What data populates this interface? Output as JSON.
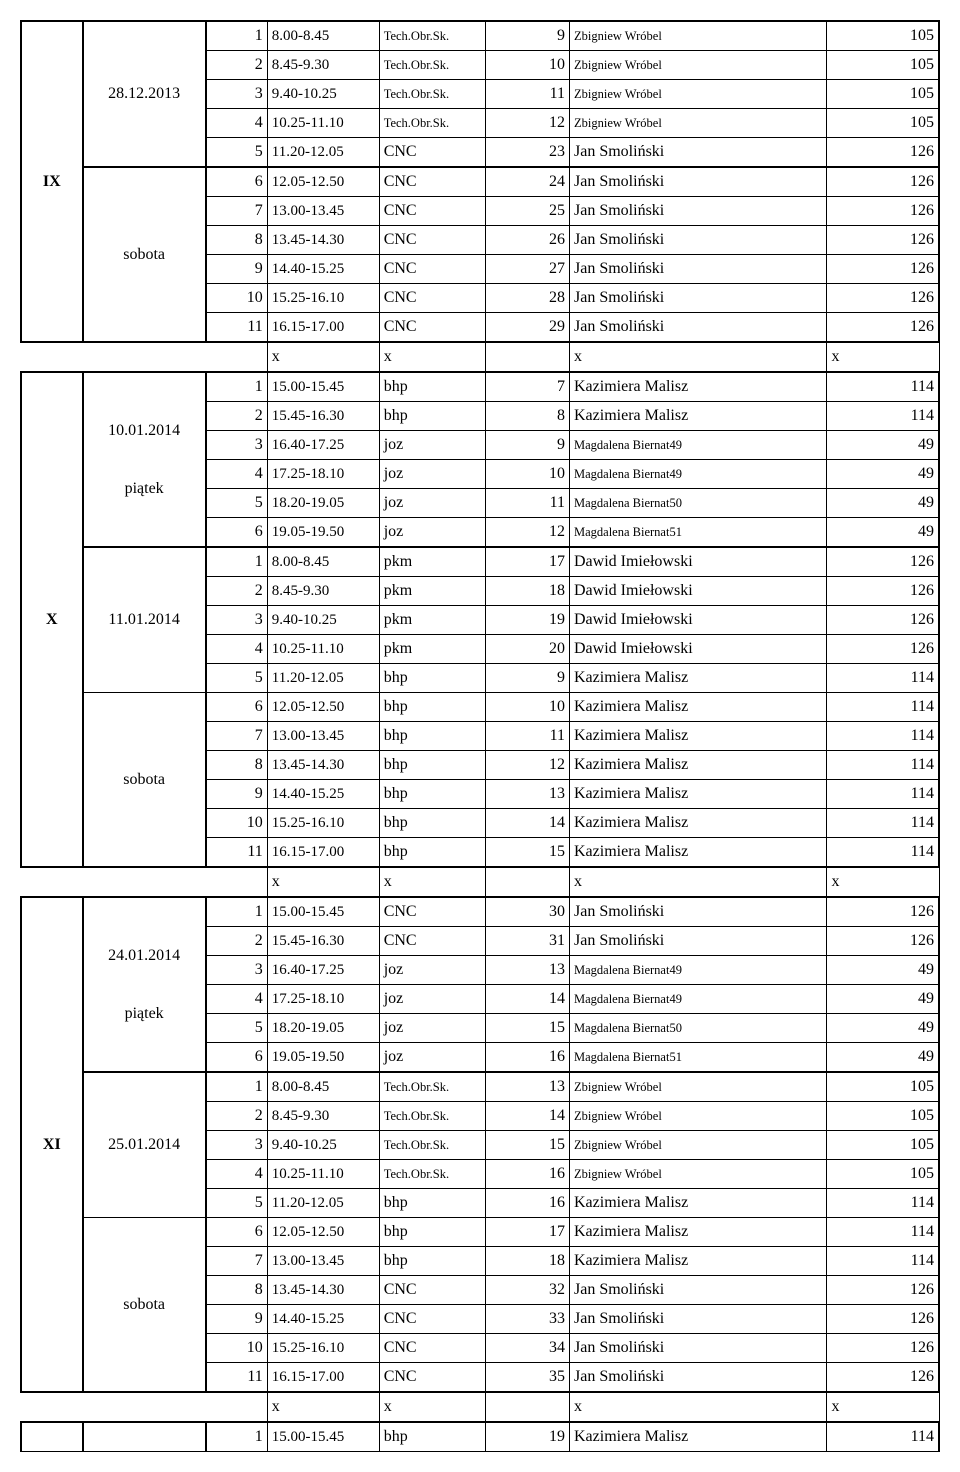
{
  "blocks": [
    {
      "roman": "IX",
      "groups": [
        {
          "date": "28.12.2013",
          "day": null,
          "thickTopStart": true,
          "rows": [
            {
              "n": "1",
              "time": "8.00-8.45",
              "subj": "Tech.Obr.Sk.",
              "subjSmall": true,
              "c6": "9",
              "teacher": "Zbigniew Wróbel",
              "teacherSmall": true,
              "room": "105"
            },
            {
              "n": "2",
              "time": "8.45-9.30",
              "subj": "Tech.Obr.Sk.",
              "subjSmall": true,
              "c6": "10",
              "teacher": "Zbigniew Wróbel",
              "teacherSmall": true,
              "room": "105"
            },
            {
              "n": "3",
              "time": "9.40-10.25",
              "subj": "Tech.Obr.Sk.",
              "subjSmall": true,
              "c6": "11",
              "teacher": "Zbigniew Wróbel",
              "teacherSmall": true,
              "room": "105"
            },
            {
              "n": "4",
              "time": "10.25-11.10",
              "subj": "Tech.Obr.Sk.",
              "subjSmall": true,
              "c6": "12",
              "teacher": "Zbigniew Wróbel",
              "teacherSmall": true,
              "room": "105"
            },
            {
              "n": "5",
              "time": "11.20-12.05",
              "subj": "CNC",
              "subjSmall": false,
              "c6": "23",
              "teacher": "Jan Smoliński",
              "teacherSmall": false,
              "room": "126"
            }
          ]
        },
        {
          "date": null,
          "day": "sobota",
          "thickTopStart": true,
          "rows": [
            {
              "n": "6",
              "time": "12.05-12.50",
              "subj": "CNC",
              "subjSmall": false,
              "c6": "24",
              "teacher": "Jan Smoliński",
              "teacherSmall": false,
              "room": "126"
            },
            {
              "n": "7",
              "time": "13.00-13.45",
              "subj": "CNC",
              "subjSmall": false,
              "c6": "25",
              "teacher": "Jan Smoliński",
              "teacherSmall": false,
              "room": "126"
            },
            {
              "n": "8",
              "time": "13.45-14.30",
              "subj": "CNC",
              "subjSmall": false,
              "c6": "26",
              "teacher": "Jan Smoliński",
              "teacherSmall": false,
              "room": "126"
            },
            {
              "n": "9",
              "time": "14.40-15.25",
              "subj": "CNC",
              "subjSmall": false,
              "c6": "27",
              "teacher": "Jan Smoliński",
              "teacherSmall": false,
              "room": "126"
            },
            {
              "n": "10",
              "time": "15.25-16.10",
              "subj": "CNC",
              "subjSmall": false,
              "c6": "28",
              "teacher": "Jan Smoliński",
              "teacherSmall": false,
              "room": "126"
            },
            {
              "n": "11",
              "time": "16.15-17.00",
              "subj": "CNC",
              "subjSmall": false,
              "c6": "29",
              "teacher": "Jan Smoliński",
              "teacherSmall": false,
              "room": "126"
            }
          ]
        }
      ],
      "separator": {
        "c4": "x",
        "c5": "x",
        "c6": "",
        "c7": "x",
        "c8": "x"
      }
    },
    {
      "roman": "X",
      "groups": [
        {
          "date": "10.01.2014",
          "day": "piątek",
          "thickTopStart": true,
          "rows": [
            {
              "n": "1",
              "time": "15.00-15.45",
              "subj": "bhp",
              "subjSmall": false,
              "c6": "7",
              "teacher": "Kazimiera Malisz",
              "teacherSmall": false,
              "room": "114"
            },
            {
              "n": "2",
              "time": "15.45-16.30",
              "subj": "bhp",
              "subjSmall": false,
              "c6": "8",
              "teacher": "Kazimiera Malisz",
              "teacherSmall": false,
              "room": "114"
            },
            {
              "n": "3",
              "time": "16.40-17.25",
              "subj": "joz",
              "subjSmall": false,
              "c6": "9",
              "teacher": "Magdalena Biernat49",
              "teacherSmall": true,
              "room": "49"
            },
            {
              "n": "4",
              "time": "17.25-18.10",
              "subj": "joz",
              "subjSmall": false,
              "c6": "10",
              "teacher": "Magdalena Biernat49",
              "teacherSmall": true,
              "room": "49"
            },
            {
              "n": "5",
              "time": "18.20-19.05",
              "subj": "joz",
              "subjSmall": false,
              "c6": "11",
              "teacher": "Magdalena Biernat50",
              "teacherSmall": true,
              "room": "49"
            },
            {
              "n": "6",
              "time": "19.05-19.50",
              "subj": "joz",
              "subjSmall": false,
              "c6": "12",
              "teacher": "Magdalena Biernat51",
              "teacherSmall": true,
              "room": "49"
            }
          ]
        },
        {
          "date": "11.01.2014",
          "day": null,
          "thickTopStart": true,
          "rows": [
            {
              "n": "1",
              "time": "8.00-8.45",
              "subj": "pkm",
              "subjSmall": false,
              "c6": "17",
              "teacher": "Dawid Imiełowski",
              "teacherSmall": false,
              "room": "126"
            },
            {
              "n": "2",
              "time": "8.45-9.30",
              "subj": "pkm",
              "subjSmall": false,
              "c6": "18",
              "teacher": "Dawid Imiełowski",
              "teacherSmall": false,
              "room": "126"
            },
            {
              "n": "3",
              "time": "9.40-10.25",
              "subj": "pkm",
              "subjSmall": false,
              "c6": "19",
              "teacher": "Dawid Imiełowski",
              "teacherSmall": false,
              "room": "126"
            },
            {
              "n": "4",
              "time": "10.25-11.10",
              "subj": "pkm",
              "subjSmall": false,
              "c6": "20",
              "teacher": "Dawid Imiełowski",
              "teacherSmall": false,
              "room": "126"
            },
            {
              "n": "5",
              "time": "11.20-12.05",
              "subj": "bhp",
              "subjSmall": false,
              "c6": "9",
              "teacher": "Kazimiera Malisz",
              "teacherSmall": false,
              "room": "114"
            }
          ]
        },
        {
          "date": null,
          "day": "sobota",
          "thickTopStart": false,
          "rows": [
            {
              "n": "6",
              "time": "12.05-12.50",
              "subj": "bhp",
              "subjSmall": false,
              "c6": "10",
              "teacher": "Kazimiera Malisz",
              "teacherSmall": false,
              "room": "114"
            },
            {
              "n": "7",
              "time": "13.00-13.45",
              "subj": "bhp",
              "subjSmall": false,
              "c6": "11",
              "teacher": "Kazimiera Malisz",
              "teacherSmall": false,
              "room": "114"
            },
            {
              "n": "8",
              "time": "13.45-14.30",
              "subj": "bhp",
              "subjSmall": false,
              "c6": "12",
              "teacher": "Kazimiera Malisz",
              "teacherSmall": false,
              "room": "114"
            },
            {
              "n": "9",
              "time": "14.40-15.25",
              "subj": "bhp",
              "subjSmall": false,
              "c6": "13",
              "teacher": "Kazimiera Malisz",
              "teacherSmall": false,
              "room": "114"
            },
            {
              "n": "10",
              "time": "15.25-16.10",
              "subj": "bhp",
              "subjSmall": false,
              "c6": "14",
              "teacher": "Kazimiera Malisz",
              "teacherSmall": false,
              "room": "114"
            },
            {
              "n": "11",
              "time": "16.15-17.00",
              "subj": "bhp",
              "subjSmall": false,
              "c6": "15",
              "teacher": "Kazimiera Malisz",
              "teacherSmall": false,
              "room": "114"
            }
          ]
        }
      ],
      "separator": {
        "c4": "x",
        "c5": "x",
        "c6": "",
        "c7": "x",
        "c8": "x"
      }
    },
    {
      "roman": "XI",
      "groups": [
        {
          "date": "24.01.2014",
          "day": "piątek",
          "thickTopStart": true,
          "rows": [
            {
              "n": "1",
              "time": "15.00-15.45",
              "subj": "CNC",
              "subjSmall": false,
              "c6": "30",
              "teacher": "Jan Smoliński",
              "teacherSmall": false,
              "room": "126"
            },
            {
              "n": "2",
              "time": "15.45-16.30",
              "subj": "CNC",
              "subjSmall": false,
              "c6": "31",
              "teacher": "Jan Smoliński",
              "teacherSmall": false,
              "room": "126"
            },
            {
              "n": "3",
              "time": "16.40-17.25",
              "subj": "joz",
              "subjSmall": false,
              "c6": "13",
              "teacher": "Magdalena Biernat49",
              "teacherSmall": true,
              "room": "49"
            },
            {
              "n": "4",
              "time": "17.25-18.10",
              "subj": "joz",
              "subjSmall": false,
              "c6": "14",
              "teacher": "Magdalena Biernat49",
              "teacherSmall": true,
              "room": "49"
            },
            {
              "n": "5",
              "time": "18.20-19.05",
              "subj": "joz",
              "subjSmall": false,
              "c6": "15",
              "teacher": "Magdalena Biernat50",
              "teacherSmall": true,
              "room": "49"
            },
            {
              "n": "6",
              "time": "19.05-19.50",
              "subj": "joz",
              "subjSmall": false,
              "c6": "16",
              "teacher": "Magdalena Biernat51",
              "teacherSmall": true,
              "room": "49"
            }
          ]
        },
        {
          "date": "25.01.2014",
          "day": null,
          "thickTopStart": true,
          "rows": [
            {
              "n": "1",
              "time": "8.00-8.45",
              "subj": "Tech.Obr.Sk.",
              "subjSmall": true,
              "c6": "13",
              "teacher": "Zbigniew Wróbel",
              "teacherSmall": true,
              "room": "105"
            },
            {
              "n": "2",
              "time": "8.45-9.30",
              "subj": "Tech.Obr.Sk.",
              "subjSmall": true,
              "c6": "14",
              "teacher": "Zbigniew Wróbel",
              "teacherSmall": true,
              "room": "105"
            },
            {
              "n": "3",
              "time": "9.40-10.25",
              "subj": "Tech.Obr.Sk.",
              "subjSmall": true,
              "c6": "15",
              "teacher": "Zbigniew Wróbel",
              "teacherSmall": true,
              "room": "105"
            },
            {
              "n": "4",
              "time": "10.25-11.10",
              "subj": "Tech.Obr.Sk.",
              "subjSmall": true,
              "c6": "16",
              "teacher": "Zbigniew Wróbel",
              "teacherSmall": true,
              "room": "105"
            },
            {
              "n": "5",
              "time": "11.20-12.05",
              "subj": "bhp",
              "subjSmall": false,
              "c6": "16",
              "teacher": "Kazimiera Malisz",
              "teacherSmall": false,
              "room": "114"
            }
          ]
        },
        {
          "date": null,
          "day": "sobota",
          "thickTopStart": false,
          "rows": [
            {
              "n": "6",
              "time": "12.05-12.50",
              "subj": "bhp",
              "subjSmall": false,
              "c6": "17",
              "teacher": "Kazimiera Malisz",
              "teacherSmall": false,
              "room": "114"
            },
            {
              "n": "7",
              "time": "13.00-13.45",
              "subj": "bhp",
              "subjSmall": false,
              "c6": "18",
              "teacher": "Kazimiera Malisz",
              "teacherSmall": false,
              "room": "114"
            },
            {
              "n": "8",
              "time": "13.45-14.30",
              "subj": "CNC",
              "subjSmall": false,
              "c6": "32",
              "teacher": "Jan Smoliński",
              "teacherSmall": false,
              "room": "126"
            },
            {
              "n": "9",
              "time": "14.40-15.25",
              "subj": "CNC",
              "subjSmall": false,
              "c6": "33",
              "teacher": "Jan Smoliński",
              "teacherSmall": false,
              "room": "126"
            },
            {
              "n": "10",
              "time": "15.25-16.10",
              "subj": "CNC",
              "subjSmall": false,
              "c6": "34",
              "teacher": "Jan Smoliński",
              "teacherSmall": false,
              "room": "126"
            },
            {
              "n": "11",
              "time": "16.15-17.00",
              "subj": "CNC",
              "subjSmall": false,
              "c6": "35",
              "teacher": "Jan Smoliński",
              "teacherSmall": false,
              "room": "126"
            }
          ]
        }
      ],
      "separator": {
        "c4": "x",
        "c5": "x",
        "c6": "",
        "c7": "x",
        "c8": "x"
      }
    }
  ],
  "trailing": {
    "n": "1",
    "time": "15.00-15.45",
    "subj": "bhp",
    "c6": "19",
    "teacher": "Kazimiera Malisz",
    "room": "114"
  }
}
